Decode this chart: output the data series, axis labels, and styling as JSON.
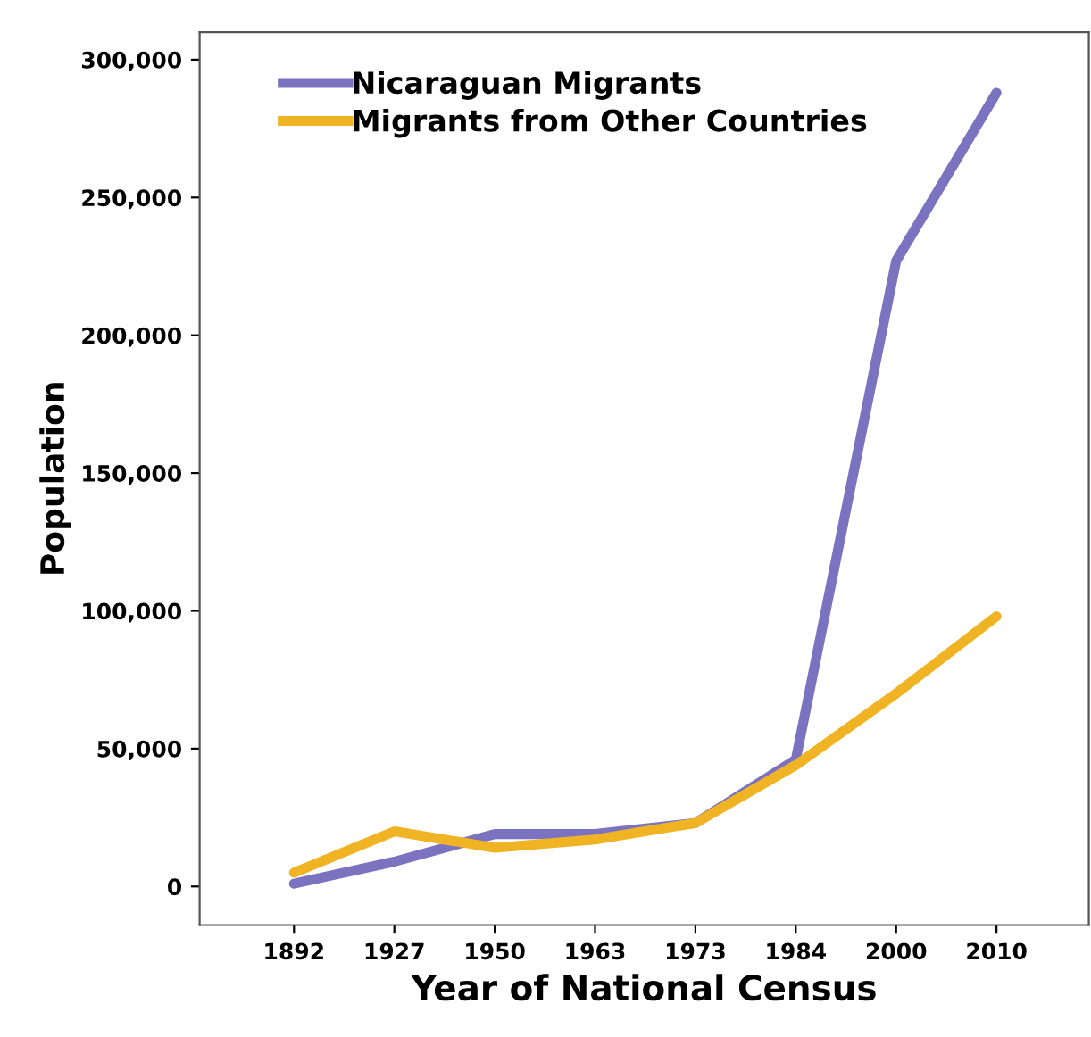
{
  "chart_data": {
    "type": "line",
    "xlabel": "Year of National Census",
    "ylabel": "Population",
    "categories": [
      "1892",
      "1927",
      "1950",
      "1963",
      "1973",
      "1984",
      "2000",
      "2010"
    ],
    "series": [
      {
        "name": "Nicaraguan Migrants",
        "color": "#7b72c0",
        "values": [
          1000,
          9000,
          19000,
          19000,
          23000,
          46000,
          227000,
          288000
        ]
      },
      {
        "name": "Migrants from Other Countries",
        "color": "#f0b323",
        "values": [
          5000,
          20000,
          14000,
          17000,
          23000,
          44000,
          70000,
          98000
        ]
      }
    ],
    "ylim": [
      -14000,
      310000
    ],
    "yticks": [
      {
        "value": 0,
        "label": "0"
      },
      {
        "value": 50000,
        "label": "50,000"
      },
      {
        "value": 100000,
        "label": "100,000"
      },
      {
        "value": 150000,
        "label": "150,000"
      },
      {
        "value": 200000,
        "label": "200,000"
      },
      {
        "value": 250000,
        "label": "250,000"
      },
      {
        "value": 300000,
        "label": "300,000"
      }
    ],
    "grid": false,
    "legend": "top left",
    "marker": "none",
    "line_style": "solid"
  }
}
